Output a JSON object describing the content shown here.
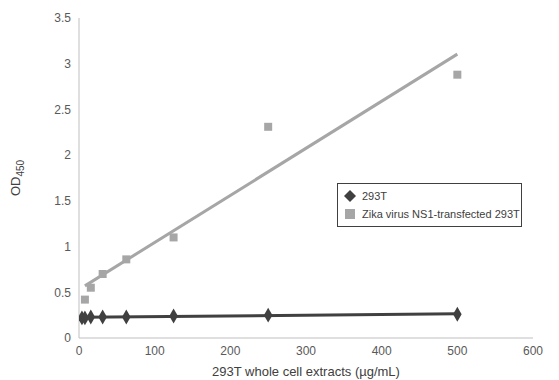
{
  "chart_data": {
    "type": "scatter",
    "x_label": "293T whole cell extracts (µg/mL)",
    "y_label": "OD450",
    "xlim": [
      0,
      600
    ],
    "xticks": [
      0,
      100,
      200,
      300,
      400,
      500,
      600
    ],
    "ylim": [
      0,
      3.5
    ],
    "yticks": [
      0,
      0.5,
      1,
      1.5,
      2,
      2.5,
      3,
      3.5
    ],
    "grid": false,
    "legend": "right",
    "series": [
      {
        "name": "293T",
        "color": "#404040",
        "marker": "diamond",
        "x": [
          3.9,
          7.8,
          15.6,
          31.25,
          62.5,
          125,
          250,
          500
        ],
        "values": [
          0.22,
          0.22,
          0.23,
          0.23,
          0.23,
          0.24,
          0.25,
          0.26
        ]
      },
      {
        "name": "Zika virus NS1-transfected 293T",
        "color": "#a6a6a6",
        "marker": "square",
        "x": [
          7.8,
          15.6,
          31.25,
          62.5,
          125,
          250,
          500
        ],
        "values": [
          0.42,
          0.55,
          0.7,
          0.86,
          1.1,
          2.31,
          2.88
        ]
      }
    ]
  }
}
